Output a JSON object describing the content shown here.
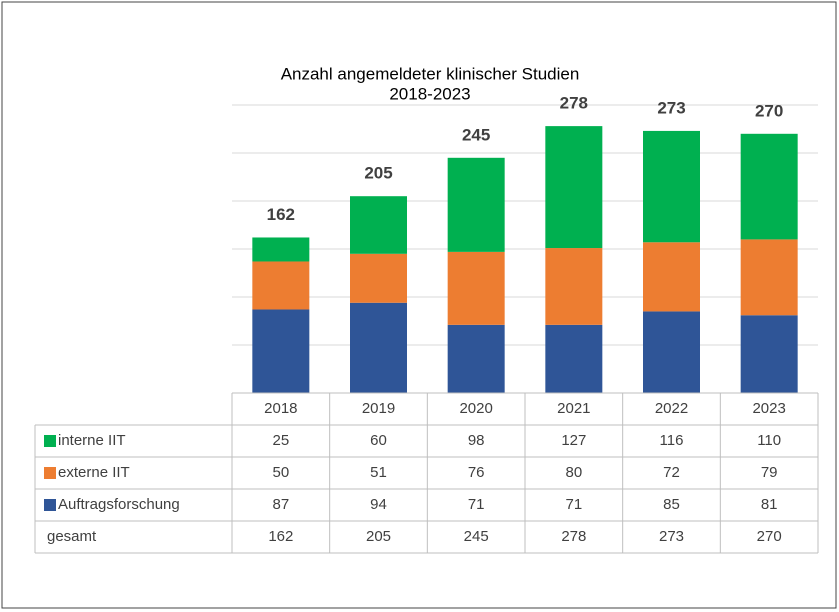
{
  "chart_data": {
    "type": "stacked_bar_table",
    "title": "Anzahl angemeldeter klinischer Studien",
    "subtitle": "2018-2023",
    "categories": [
      "2018",
      "2019",
      "2020",
      "2021",
      "2022",
      "2023"
    ],
    "series": [
      {
        "name": "interne IIT",
        "color": "#00b050",
        "values": [
          25,
          60,
          98,
          127,
          116,
          110
        ]
      },
      {
        "name": "externe IIT",
        "color": "#ed7d31",
        "values": [
          50,
          51,
          76,
          80,
          72,
          79
        ]
      },
      {
        "name": "Auftragsforschung",
        "color": "#2f5597",
        "values": [
          87,
          94,
          71,
          71,
          85,
          81
        ]
      }
    ],
    "totals_name": "gesamt",
    "totals": [
      162,
      205,
      245,
      278,
      273,
      270
    ],
    "ylim": [
      0,
      300
    ],
    "yticks": [
      0,
      50,
      100,
      150,
      200,
      250,
      300
    ],
    "grid": true
  }
}
